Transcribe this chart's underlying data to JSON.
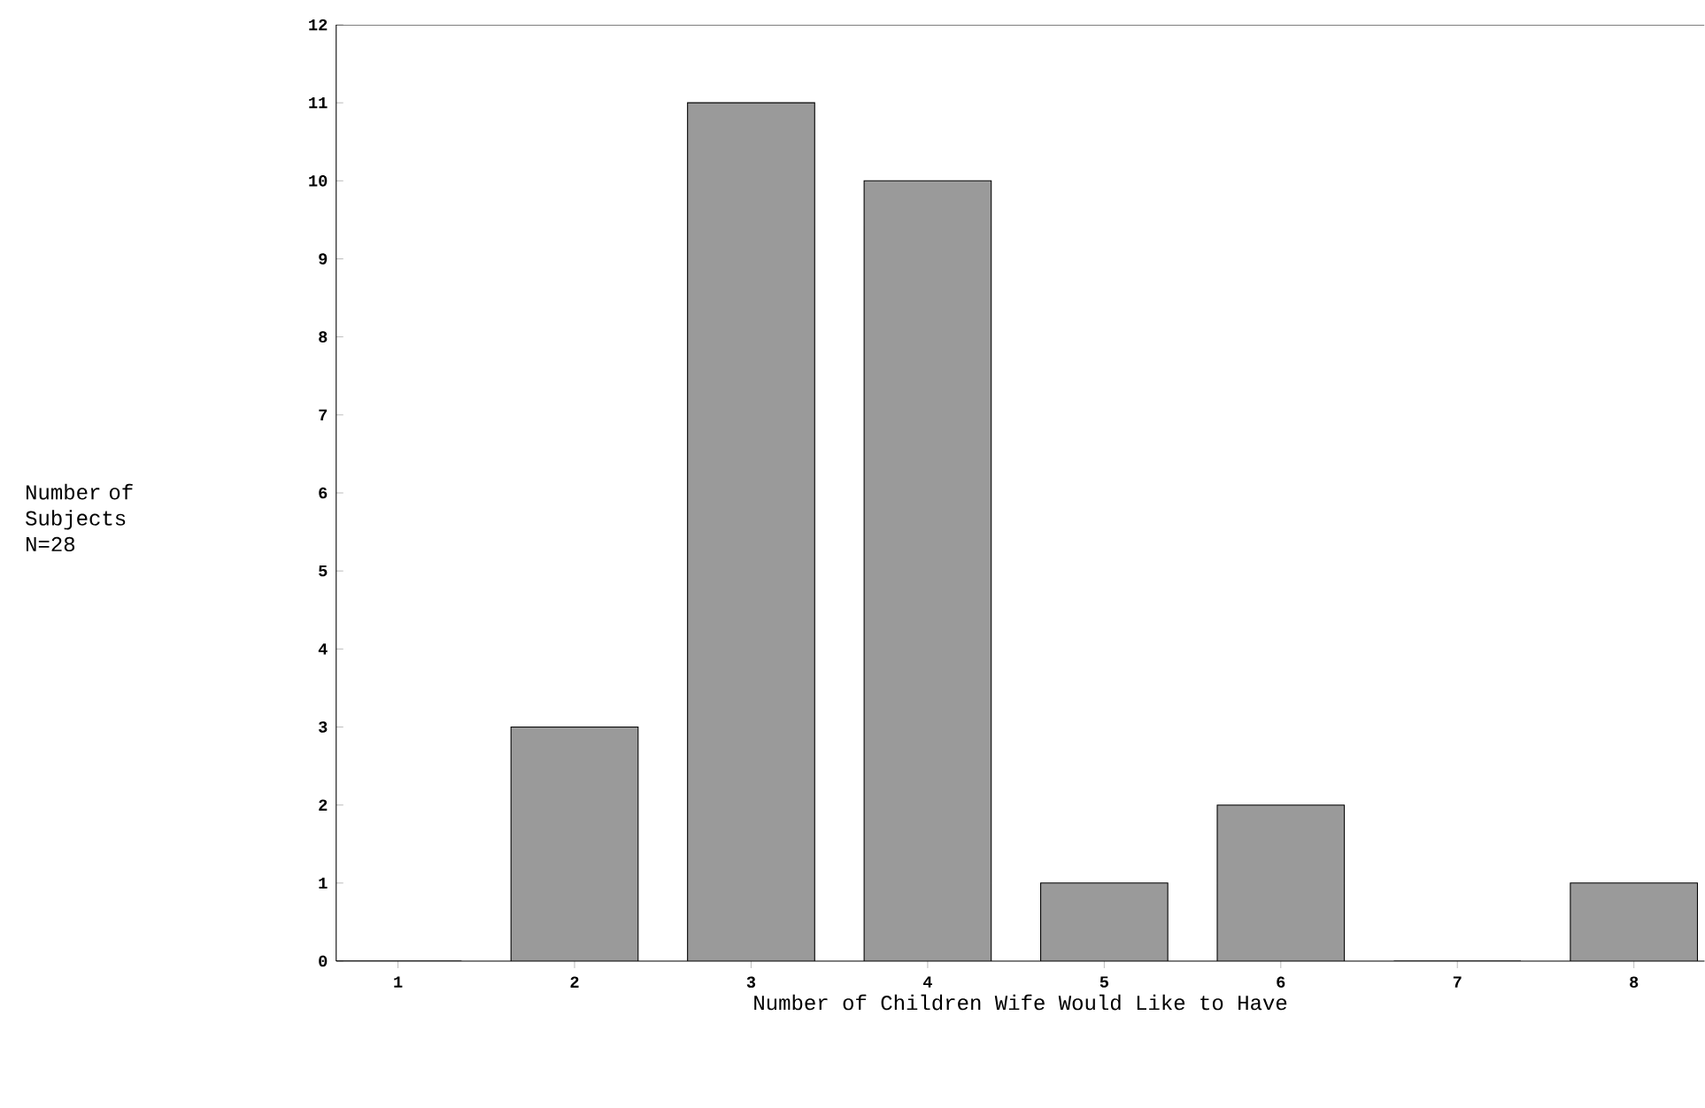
{
  "chart_data": {
    "type": "bar",
    "xlabel": "Number of Children Wife Would Like to Have",
    "annotations": [
      "Number of Subjects N=28"
    ],
    "categories": [
      "1",
      "2",
      "3",
      "4",
      "5",
      "6",
      "7",
      "8"
    ],
    "values": [
      0,
      3,
      11,
      10,
      1,
      2,
      0,
      1
    ],
    "color": "#9a9a9a",
    "ylim": [
      0,
      12
    ],
    "yticks": [
      0,
      1,
      2,
      3,
      4,
      5,
      6,
      7,
      8,
      9,
      10,
      11,
      12
    ]
  }
}
